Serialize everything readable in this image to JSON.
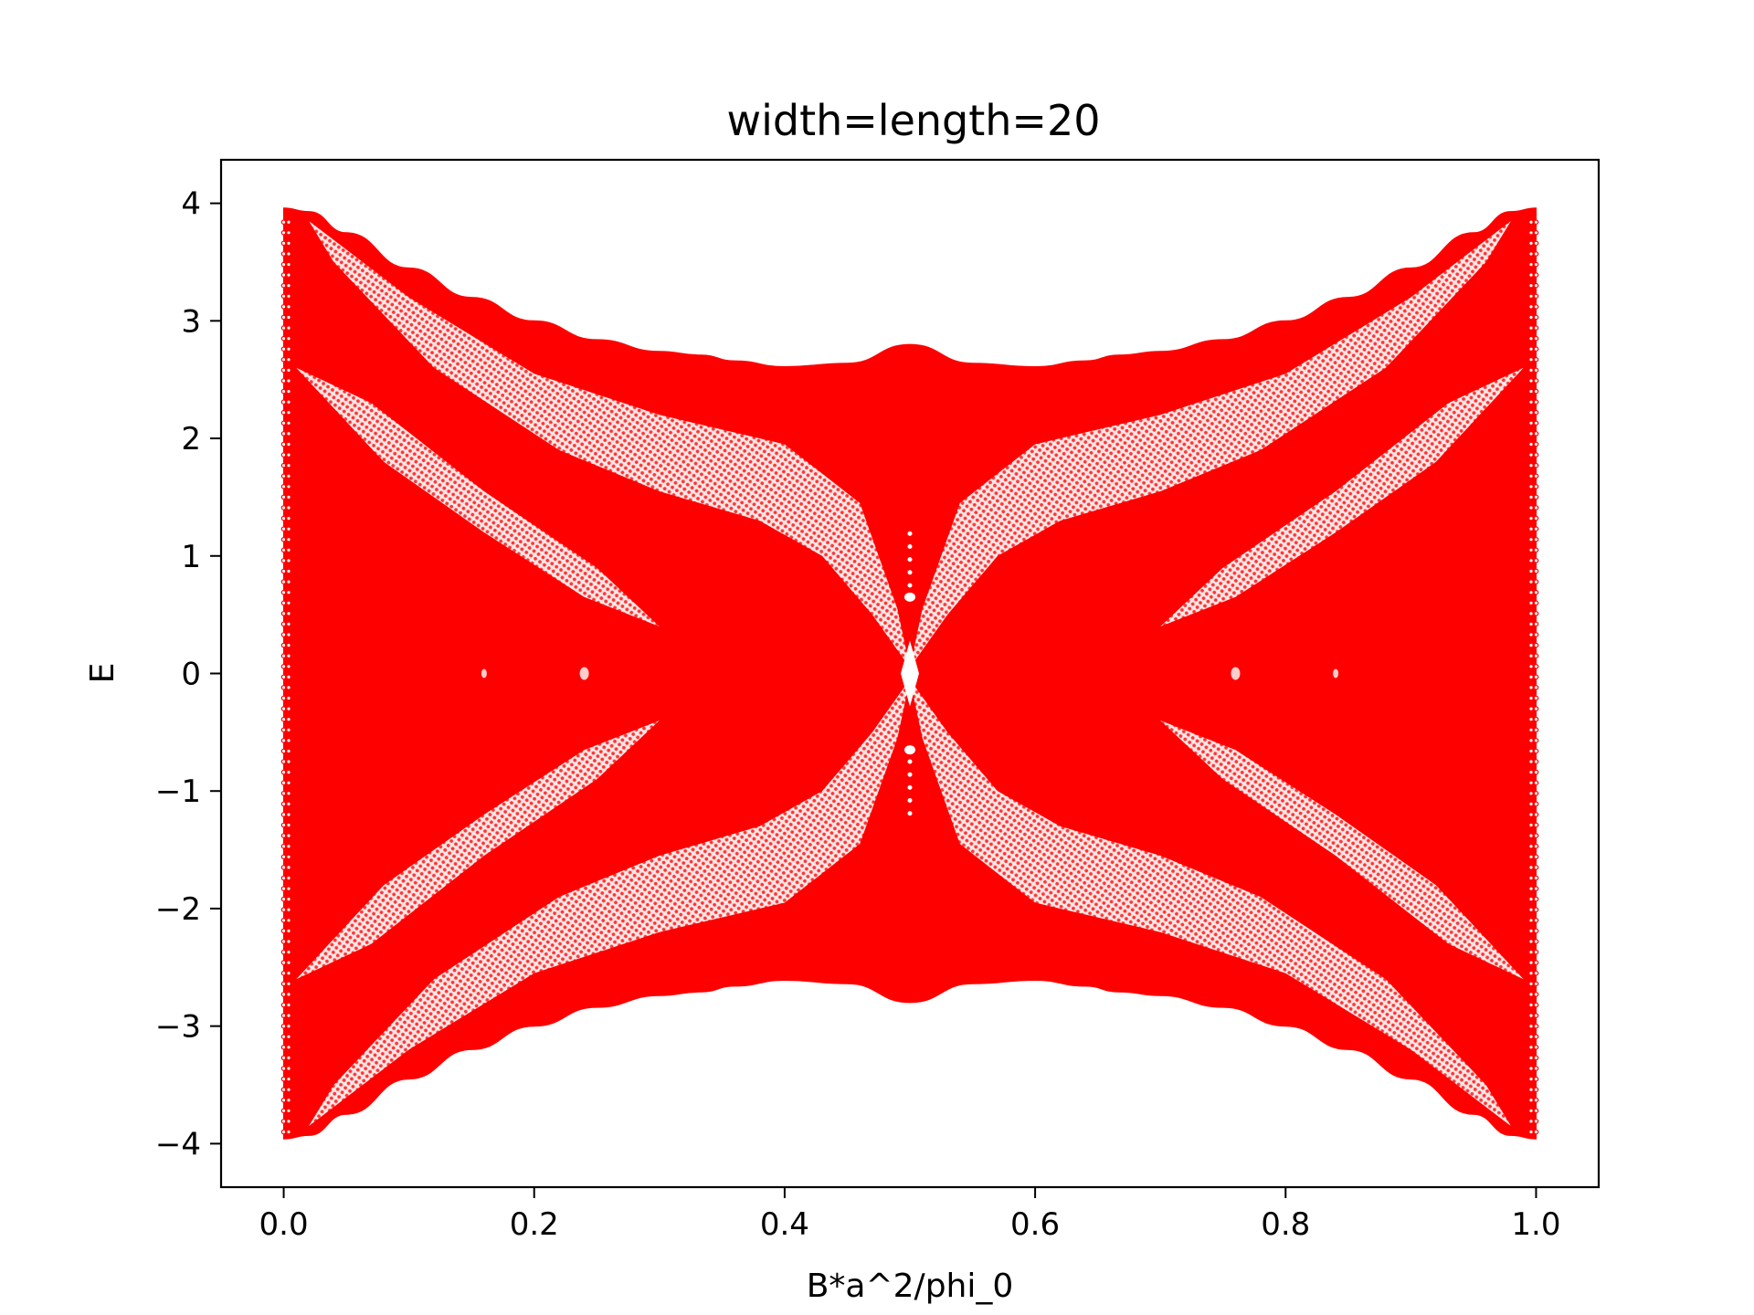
{
  "chart_data": {
    "type": "scatter",
    "title": "width=length=20",
    "xlabel": "B*a^2/phi_0",
    "ylabel": "E",
    "xlim": [
      -0.05,
      1.05
    ],
    "ylim": [
      -4.37,
      4.37
    ],
    "xticks": [
      {
        "value": 0.0,
        "label": "0.0"
      },
      {
        "value": 0.2,
        "label": "0.2"
      },
      {
        "value": 0.4,
        "label": "0.4"
      },
      {
        "value": 0.6,
        "label": "0.6"
      },
      {
        "value": 0.8,
        "label": "0.8"
      },
      {
        "value": 1.0,
        "label": "1.0"
      }
    ],
    "yticks": [
      {
        "value": 4,
        "label": "4"
      },
      {
        "value": 3,
        "label": "3"
      },
      {
        "value": 2,
        "label": "2"
      },
      {
        "value": 1,
        "label": "1"
      },
      {
        "value": 0,
        "label": "0"
      },
      {
        "value": -1,
        "label": "−1"
      },
      {
        "value": -2,
        "label": "−2"
      },
      {
        "value": -3,
        "label": "−3"
      },
      {
        "value": -4,
        "label": "−4"
      }
    ],
    "grid": false,
    "legend": "none",
    "color": "#ff0000",
    "series": [
      {
        "role": "spectrum-envelope",
        "x": [
          0.0,
          0.02,
          0.05,
          0.1,
          0.15,
          0.2,
          0.25,
          0.3,
          0.333,
          0.36,
          0.4,
          0.45,
          0.5,
          0.55,
          0.6,
          0.64,
          0.667,
          0.7,
          0.75,
          0.8,
          0.85,
          0.9,
          0.95,
          0.98,
          1.0
        ],
        "upper": [
          3.96,
          3.93,
          3.75,
          3.45,
          3.2,
          3.0,
          2.84,
          2.74,
          2.71,
          2.66,
          2.61,
          2.64,
          2.8,
          2.64,
          2.61,
          2.66,
          2.71,
          2.74,
          2.84,
          3.0,
          3.2,
          3.45,
          3.75,
          3.93,
          3.96
        ],
        "lower": [
          -3.96,
          -3.93,
          -3.75,
          -3.45,
          -3.2,
          -3.0,
          -2.84,
          -2.74,
          -2.71,
          -2.66,
          -2.61,
          -2.64,
          -2.8,
          -2.64,
          -2.61,
          -2.66,
          -2.71,
          -2.74,
          -2.84,
          -3.0,
          -3.2,
          -3.45,
          -3.75,
          -3.93,
          -3.96
        ]
      }
    ],
    "spectrum_grid": {
      "flux_step": 0.0025,
      "levels_per_flux": 160
    }
  }
}
